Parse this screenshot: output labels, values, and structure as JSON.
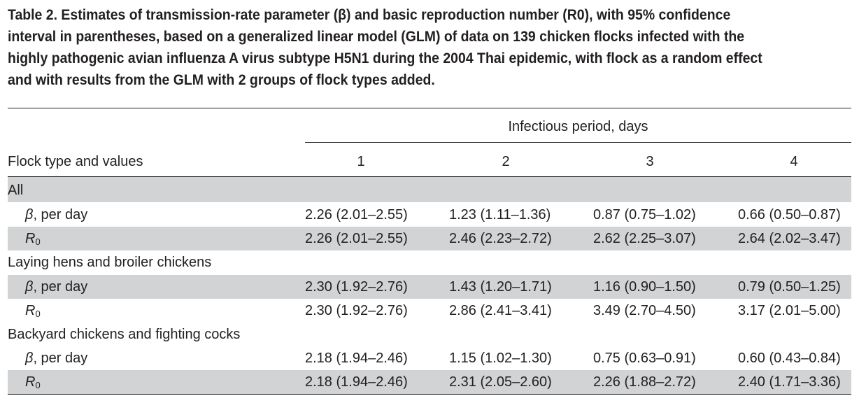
{
  "caption": {
    "lines": [
      "Table 2.   Estimates of transmission-rate parameter (β) and basic reproduction number (R0), with 95% confidence",
      "interval in parentheses, based on a generalized linear model (GLM) of data on 139 chicken flocks infected with the",
      "highly pathogenic avian influenza A virus subtype H5N1 during the 2004 Thai epidemic, with flock as a random effect",
      "and with results from the GLM with 2 groups of flock types added."
    ]
  },
  "table": {
    "span_header": "Infectious period, days",
    "row_header": "Flock type and values",
    "columns": [
      "1",
      "2",
      "3",
      "4"
    ],
    "groups": [
      {
        "label": "All",
        "rows": [
          {
            "symbol": "β",
            "suffix": ", per day",
            "values": [
              "2.26 (2.01–2.55)",
              "1.23 (1.11–1.36)",
              "0.87 (0.75–1.02)",
              "0.66 (0.50–0.87)"
            ]
          },
          {
            "symbol": "R",
            "subscript": "0",
            "values": [
              "2.26 (2.01–2.55)",
              "2.46 (2.23–2.72)",
              "2.62 (2.25–3.07)",
              "2.64 (2.02–3.47)"
            ]
          }
        ]
      },
      {
        "label": "Laying hens and broiler chickens",
        "rows": [
          {
            "symbol": "β",
            "suffix": ", per day",
            "values": [
              "2.30 (1.92–2.76)",
              "1.43 (1.20–1.71)",
              "1.16 (0.90–1.50)",
              "0.79 (0.50–1.25)"
            ]
          },
          {
            "symbol": "R",
            "subscript": "0",
            "values": [
              "2.30 (1.92–2.76)",
              "2.86 (2.41–3.41)",
              "3.49 (2.70–4.50)",
              "3.17 (2.01–5.00)"
            ]
          }
        ]
      },
      {
        "label": "Backyard chickens and fighting cocks",
        "rows": [
          {
            "symbol": "β",
            "suffix": ", per day",
            "values": [
              "2.18 (1.94–2.46)",
              "1.15 (1.02–1.30)",
              "0.75 (0.63–0.91)",
              "0.60 (0.43–0.84)"
            ]
          },
          {
            "symbol": "R",
            "subscript": "0",
            "values": [
              "2.18 (1.94–2.46)",
              "2.31 (2.05–2.60)",
              "2.26 (1.88–2.72)",
              "2.40 (1.71–3.36)"
            ]
          }
        ]
      }
    ]
  },
  "colors": {
    "shade": "#d1d3d4",
    "text": "#231f20"
  }
}
